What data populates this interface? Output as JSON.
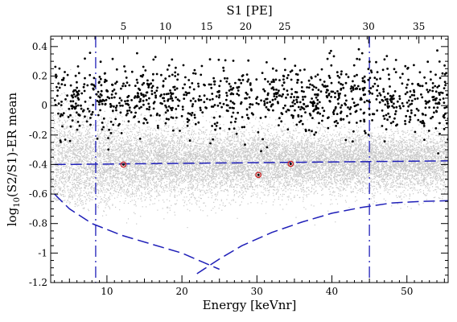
{
  "chart_data": {
    "type": "scatter",
    "title": "",
    "xlabel": "Energy [keVnr]",
    "x2label": "S1 [PE]",
    "ylabel_main": "log",
    "ylabel_sub": "10",
    "ylabel_rest": "(S2/S1)-ER mean",
    "xlim": [
      2.5,
      55.5
    ],
    "ylim": [
      -1.2,
      0.47
    ],
    "x_ticks": [
      10,
      20,
      30,
      40,
      50
    ],
    "x_tick_labels": [
      "10",
      "20",
      "30",
      "40",
      "50"
    ],
    "y_ticks": [
      -1.2,
      -1.0,
      -0.8,
      -0.6,
      -0.4,
      -0.2,
      0.0,
      0.2,
      0.4
    ],
    "y_tick_labels": [
      "-1.2",
      "-1",
      "-0.8",
      "-0.6",
      "-0.4",
      "-0.2",
      "0",
      "0.2",
      "0.4"
    ],
    "x2_ticks_energy": [
      12.2,
      17.8,
      23.3,
      28.5,
      33.7,
      38.9,
      44.9,
      51.6
    ],
    "x2_tick_labels": [
      "5",
      "10",
      "15",
      "20",
      "25",
      "30",
      "35"
    ],
    "x2_tick_label_energy": [
      12.2,
      17.8,
      23.3,
      28.5,
      33.7,
      44.9,
      51.6
    ],
    "x2_tick_label_values": [
      "5",
      "10",
      "15",
      "20",
      "25",
      "30",
      "35"
    ],
    "colors": {
      "background_band": "#c8c8c8",
      "events": "#000000",
      "nr_band_lines": "#1f1fb8",
      "highlight_ring": "#cc2222"
    },
    "vertical_lines_energy": [
      8.5,
      45.0
    ],
    "nr_median_line": [
      [
        3,
        -0.4
      ],
      [
        55.5,
        -0.375
      ]
    ],
    "lower_cut_curve": [
      [
        3,
        -0.6
      ],
      [
        5,
        -0.7
      ],
      [
        8,
        -0.8
      ],
      [
        12,
        -0.88
      ],
      [
        16,
        -0.94
      ],
      [
        20,
        -1.0
      ],
      [
        25,
        -1.11
      ]
    ],
    "upper_threshold_curve": [
      [
        22,
        -1.14
      ],
      [
        25,
        -1.04
      ],
      [
        28,
        -0.95
      ],
      [
        32,
        -0.86
      ],
      [
        36,
        -0.79
      ],
      [
        40,
        -0.73
      ],
      [
        44,
        -0.69
      ],
      [
        48,
        -0.66
      ],
      [
        52,
        -0.65
      ],
      [
        55.5,
        -0.645
      ]
    ],
    "highlighted_events": [
      {
        "x": 12.2,
        "y": -0.4
      },
      {
        "x": 30.2,
        "y": -0.47
      },
      {
        "x": 34.5,
        "y": -0.395
      }
    ]
  }
}
